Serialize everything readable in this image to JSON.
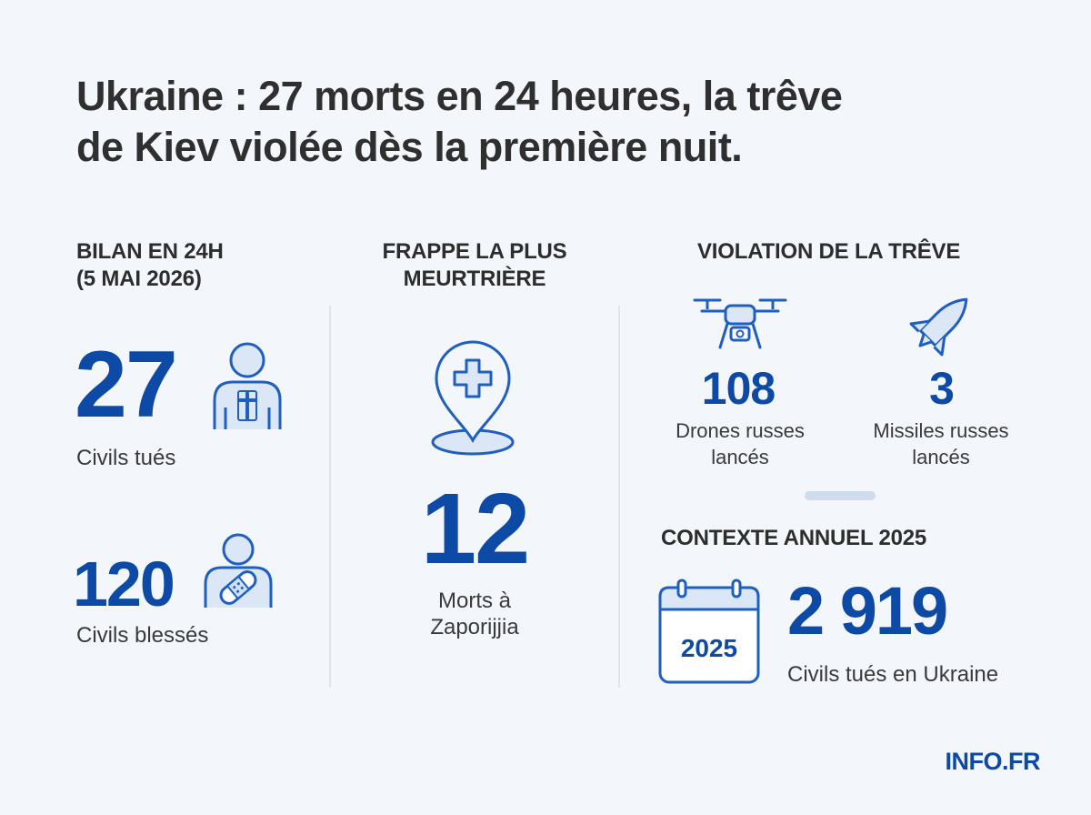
{
  "title": {
    "line1": "Ukraine : 27 morts en 24 heures, la trêve",
    "line2": "de Kiev violée dès la première nuit."
  },
  "bilan": {
    "heading_line1": "BILAN EN 24H",
    "heading_line2": "(5 MAI 2026)",
    "killed_value": "27",
    "killed_label": "Civils tués",
    "wounded_value": "120",
    "wounded_label": "Civils blessés"
  },
  "frappe": {
    "heading_line1": "FRAPPE LA PLUS",
    "heading_line2": "MEURTRIÈRE",
    "value": "12",
    "label_line1": "Morts à",
    "label_line2": "Zaporijjia"
  },
  "violation": {
    "heading": "VIOLATION DE LA TRÊVE",
    "drones_value": "108",
    "drones_label_line1": "Drones russes",
    "drones_label_line2": "lancés",
    "missiles_value": "3",
    "missiles_label_line1": "Missiles russes",
    "missiles_label_line2": "lancés"
  },
  "contexte": {
    "heading": "CONTEXTE ANNUEL 2025",
    "calendar_year": "2025",
    "value": "2 919",
    "label": "Civils tués en Ukraine"
  },
  "brand": "INFO.FR",
  "colors": {
    "accent": "#0d4aa6",
    "icon_stroke": "#1f5fc0",
    "icon_fill": "#dbe7f7",
    "background": "#f3f6fa"
  },
  "icons": [
    "person-cross-icon",
    "person-bandage-icon",
    "location-medical-pin-icon",
    "drone-icon",
    "missile-icon",
    "calendar-icon"
  ]
}
